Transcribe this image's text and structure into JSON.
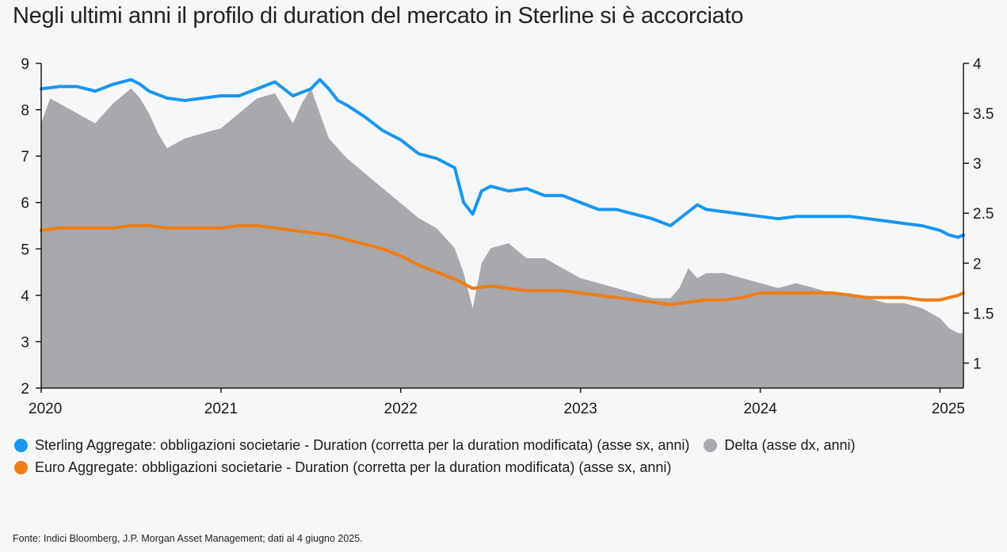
{
  "title": "Negli ultimi anni il profilo di duration del mercato in Sterline si è accorciato",
  "source": "Fonte: Indici Bloomberg, J.P. Morgan Asset Management; dati al 4 giugno 2025.",
  "legend": {
    "sterling": "Sterling Aggregate: obbligazioni societarie - Duration (corretta per la duration modificata) (asse sx, anni)",
    "delta": "Delta (asse dx, anni)",
    "euro": "Euro Aggregate: obbligazioni societarie - Duration (corretta per la duration modificata) (asse sx, anni)"
  },
  "colors": {
    "sterling": "#1a96f0",
    "euro": "#f07d14",
    "delta": "#a8a9ad",
    "background": "#f6f7f9"
  },
  "chart_data": {
    "type": "line",
    "x_ticks": [
      "2020",
      "2021",
      "2022",
      "2023",
      "2024",
      "2025"
    ],
    "x_range": [
      2020.0,
      2025.13
    ],
    "y_left": {
      "range": [
        2,
        9
      ],
      "ticks": [
        "2",
        "3",
        "4",
        "5",
        "6",
        "7",
        "8",
        "9"
      ]
    },
    "y_right": {
      "range": [
        0.75,
        4
      ],
      "ticks": [
        "1",
        "1.5",
        "2",
        "2.5",
        "3",
        "3.5",
        "4"
      ]
    },
    "grid": false,
    "legend_position": "bottom",
    "series": [
      {
        "name": "Sterling Aggregate: obbligazioni societarie - Duration (corretta per la duration modificata) (asse sx, anni)",
        "axis": "left",
        "kind": "line",
        "x": [
          2020.0,
          2020.1,
          2020.2,
          2020.3,
          2020.4,
          2020.5,
          2020.55,
          2020.6,
          2020.7,
          2020.8,
          2020.9,
          2021.0,
          2021.1,
          2021.2,
          2021.3,
          2021.35,
          2021.4,
          2021.5,
          2021.55,
          2021.6,
          2021.65,
          2021.7,
          2021.8,
          2021.9,
          2022.0,
          2022.1,
          2022.2,
          2022.3,
          2022.35,
          2022.4,
          2022.45,
          2022.5,
          2022.6,
          2022.7,
          2022.8,
          2022.9,
          2023.0,
          2023.1,
          2023.2,
          2023.3,
          2023.4,
          2023.5,
          2023.55,
          2023.6,
          2023.65,
          2023.7,
          2023.8,
          2023.9,
          2024.0,
          2024.1,
          2024.2,
          2024.3,
          2024.4,
          2024.5,
          2024.6,
          2024.7,
          2024.8,
          2024.9,
          2025.0,
          2025.05,
          2025.1,
          2025.13
        ],
        "y": [
          8.45,
          8.5,
          8.5,
          8.4,
          8.55,
          8.65,
          8.55,
          8.4,
          8.25,
          8.2,
          8.25,
          8.3,
          8.3,
          8.45,
          8.6,
          8.45,
          8.3,
          8.45,
          8.65,
          8.45,
          8.2,
          8.1,
          7.85,
          7.55,
          7.35,
          7.05,
          6.95,
          6.75,
          6.0,
          5.75,
          6.25,
          6.35,
          6.25,
          6.3,
          6.15,
          6.15,
          6.0,
          5.85,
          5.85,
          5.75,
          5.65,
          5.5,
          5.65,
          5.8,
          5.95,
          5.85,
          5.8,
          5.75,
          5.7,
          5.65,
          5.7,
          5.7,
          5.7,
          5.7,
          5.65,
          5.6,
          5.55,
          5.5,
          5.4,
          5.3,
          5.25,
          5.3
        ]
      },
      {
        "name": "Euro Aggregate: obbligazioni societarie - Duration (corretta per la duration modificata) (asse sx, anni)",
        "axis": "left",
        "kind": "line",
        "x": [
          2020.0,
          2020.1,
          2020.2,
          2020.3,
          2020.4,
          2020.5,
          2020.6,
          2020.7,
          2020.8,
          2020.9,
          2021.0,
          2021.1,
          2021.2,
          2021.3,
          2021.4,
          2021.5,
          2021.6,
          2021.7,
          2021.8,
          2021.9,
          2022.0,
          2022.1,
          2022.2,
          2022.3,
          2022.4,
          2022.5,
          2022.6,
          2022.7,
          2022.8,
          2022.9,
          2023.0,
          2023.1,
          2023.2,
          2023.3,
          2023.4,
          2023.5,
          2023.6,
          2023.7,
          2023.8,
          2023.9,
          2024.0,
          2024.1,
          2024.2,
          2024.3,
          2024.4,
          2024.5,
          2024.6,
          2024.7,
          2024.8,
          2024.9,
          2025.0,
          2025.05,
          2025.1,
          2025.13
        ],
        "y": [
          5.4,
          5.45,
          5.45,
          5.45,
          5.45,
          5.5,
          5.5,
          5.45,
          5.45,
          5.45,
          5.45,
          5.5,
          5.5,
          5.45,
          5.4,
          5.35,
          5.3,
          5.2,
          5.1,
          5.0,
          4.85,
          4.65,
          4.5,
          4.35,
          4.15,
          4.2,
          4.15,
          4.1,
          4.1,
          4.1,
          4.05,
          4.0,
          3.95,
          3.9,
          3.85,
          3.8,
          3.85,
          3.9,
          3.9,
          3.95,
          4.05,
          4.05,
          4.05,
          4.05,
          4.05,
          4.0,
          3.95,
          3.95,
          3.95,
          3.9,
          3.9,
          3.95,
          4.0,
          4.05
        ]
      },
      {
        "name": "Delta (asse dx, anni)",
        "axis": "right",
        "kind": "area",
        "x": [
          2020.0,
          2020.05,
          2020.1,
          2020.2,
          2020.3,
          2020.4,
          2020.5,
          2020.55,
          2020.6,
          2020.65,
          2020.7,
          2020.8,
          2020.9,
          2021.0,
          2021.1,
          2021.2,
          2021.3,
          2021.35,
          2021.4,
          2021.45,
          2021.5,
          2021.55,
          2021.6,
          2021.65,
          2021.7,
          2021.8,
          2021.9,
          2022.0,
          2022.1,
          2022.2,
          2022.3,
          2022.35,
          2022.4,
          2022.45,
          2022.5,
          2022.6,
          2022.7,
          2022.8,
          2022.9,
          2023.0,
          2023.1,
          2023.2,
          2023.3,
          2023.4,
          2023.5,
          2023.55,
          2023.6,
          2023.65,
          2023.7,
          2023.8,
          2023.9,
          2024.0,
          2024.1,
          2024.2,
          2024.3,
          2024.4,
          2024.5,
          2024.6,
          2024.7,
          2024.8,
          2024.9,
          2025.0,
          2025.05,
          2025.1,
          2025.13
        ],
        "y": [
          3.4,
          3.65,
          3.6,
          3.5,
          3.4,
          3.6,
          3.75,
          3.65,
          3.5,
          3.3,
          3.15,
          3.25,
          3.3,
          3.35,
          3.5,
          3.65,
          3.7,
          3.55,
          3.4,
          3.6,
          3.75,
          3.5,
          3.25,
          3.15,
          3.05,
          2.9,
          2.75,
          2.6,
          2.45,
          2.35,
          2.15,
          1.9,
          1.55,
          2.0,
          2.15,
          2.2,
          2.05,
          2.05,
          1.95,
          1.85,
          1.8,
          1.75,
          1.7,
          1.65,
          1.65,
          1.75,
          1.95,
          1.85,
          1.9,
          1.9,
          1.85,
          1.8,
          1.75,
          1.8,
          1.75,
          1.7,
          1.7,
          1.65,
          1.6,
          1.6,
          1.55,
          1.45,
          1.35,
          1.3,
          1.3
        ]
      }
    ]
  }
}
